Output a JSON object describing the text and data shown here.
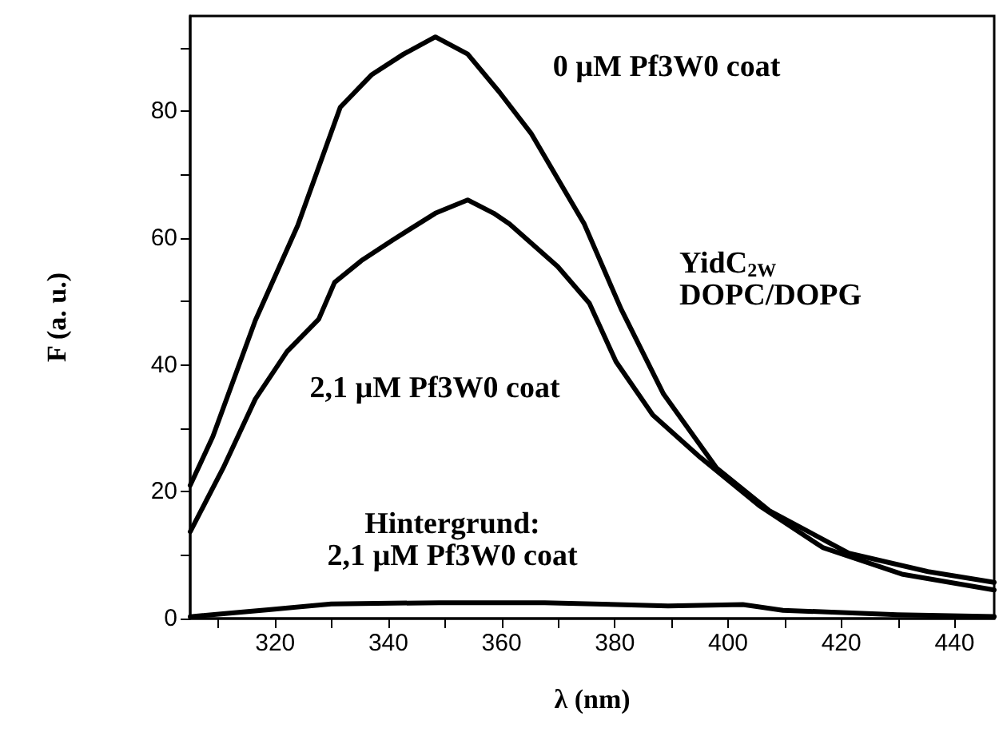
{
  "chart_data": {
    "type": "line",
    "xlabel": "λ (nm)",
    "ylabel": "F (a. u.)",
    "xlim": [
      305,
      447
    ],
    "ylim": [
      0,
      95
    ],
    "xticks": [
      {
        "value": 310,
        "label": null
      },
      320,
      {
        "value": 330,
        "label": null
      },
      340,
      {
        "value": 350,
        "label": null
      },
      360,
      {
        "value": 370,
        "label": null
      },
      380,
      {
        "value": 390,
        "label": null
      },
      400,
      {
        "value": 410,
        "label": null
      },
      420,
      {
        "value": 430,
        "label": null
      },
      440
    ],
    "yticks": [
      0,
      {
        "value": 10,
        "label": null
      },
      20,
      {
        "value": 30,
        "label": null
      },
      40,
      {
        "value": 50,
        "label": null
      },
      60,
      {
        "value": 70,
        "label": null
      },
      80,
      {
        "value": 90,
        "label": null
      }
    ],
    "grid": false,
    "marker": "none",
    "line_style": "solid",
    "series": [
      {
        "color": "#000000",
        "x": [
          305,
          309,
          316.5,
          324,
          331.5,
          337,
          342.7,
          348.3,
          354,
          359.6,
          365.2,
          374.6,
          381.1,
          388.6,
          398,
          407.3,
          421.3,
          435.3,
          447
        ],
        "values": [
          21,
          28.7,
          47,
          62,
          80.6,
          85.7,
          89,
          91.7,
          89,
          83,
          76.5,
          62.2,
          48.8,
          35.4,
          23.7,
          17,
          10.3,
          7.4,
          5.7
        ]
      },
      {
        "color": "#000000",
        "x": [
          305,
          310.8,
          316.5,
          322.1,
          327.7,
          330.5,
          335.2,
          340.8,
          348.3,
          354,
          358.6,
          361.4,
          369.9,
          375.5,
          380.2,
          386.7,
          395.1,
          405.5,
          416.7,
          430.7,
          447
        ],
        "values": [
          13.7,
          23.7,
          34.6,
          42.1,
          47.2,
          53,
          56.4,
          59.7,
          63.9,
          66,
          63.9,
          62.2,
          55.5,
          49.7,
          40.5,
          32.1,
          25.4,
          17.8,
          11.2,
          7,
          4.5
        ]
      },
      {
        "color": "#000000",
        "x": [
          305,
          318.8,
          329.9,
          349,
          367.6,
          389.4,
          402.6,
          409.7,
          429.9,
          447
        ],
        "values": [
          0.3,
          1.4,
          2.3,
          2.5,
          2.5,
          2,
          2.2,
          1.3,
          0.6,
          0.3
        ]
      }
    ],
    "annotations": [
      "0 µM Pf3W0 coat",
      "2,1 µM Pf3W0 coat",
      "Hintergrund:\n2,1 µM Pf3W0 coat",
      "YidC$_{2W}$\nDOPC/DOPG"
    ]
  }
}
